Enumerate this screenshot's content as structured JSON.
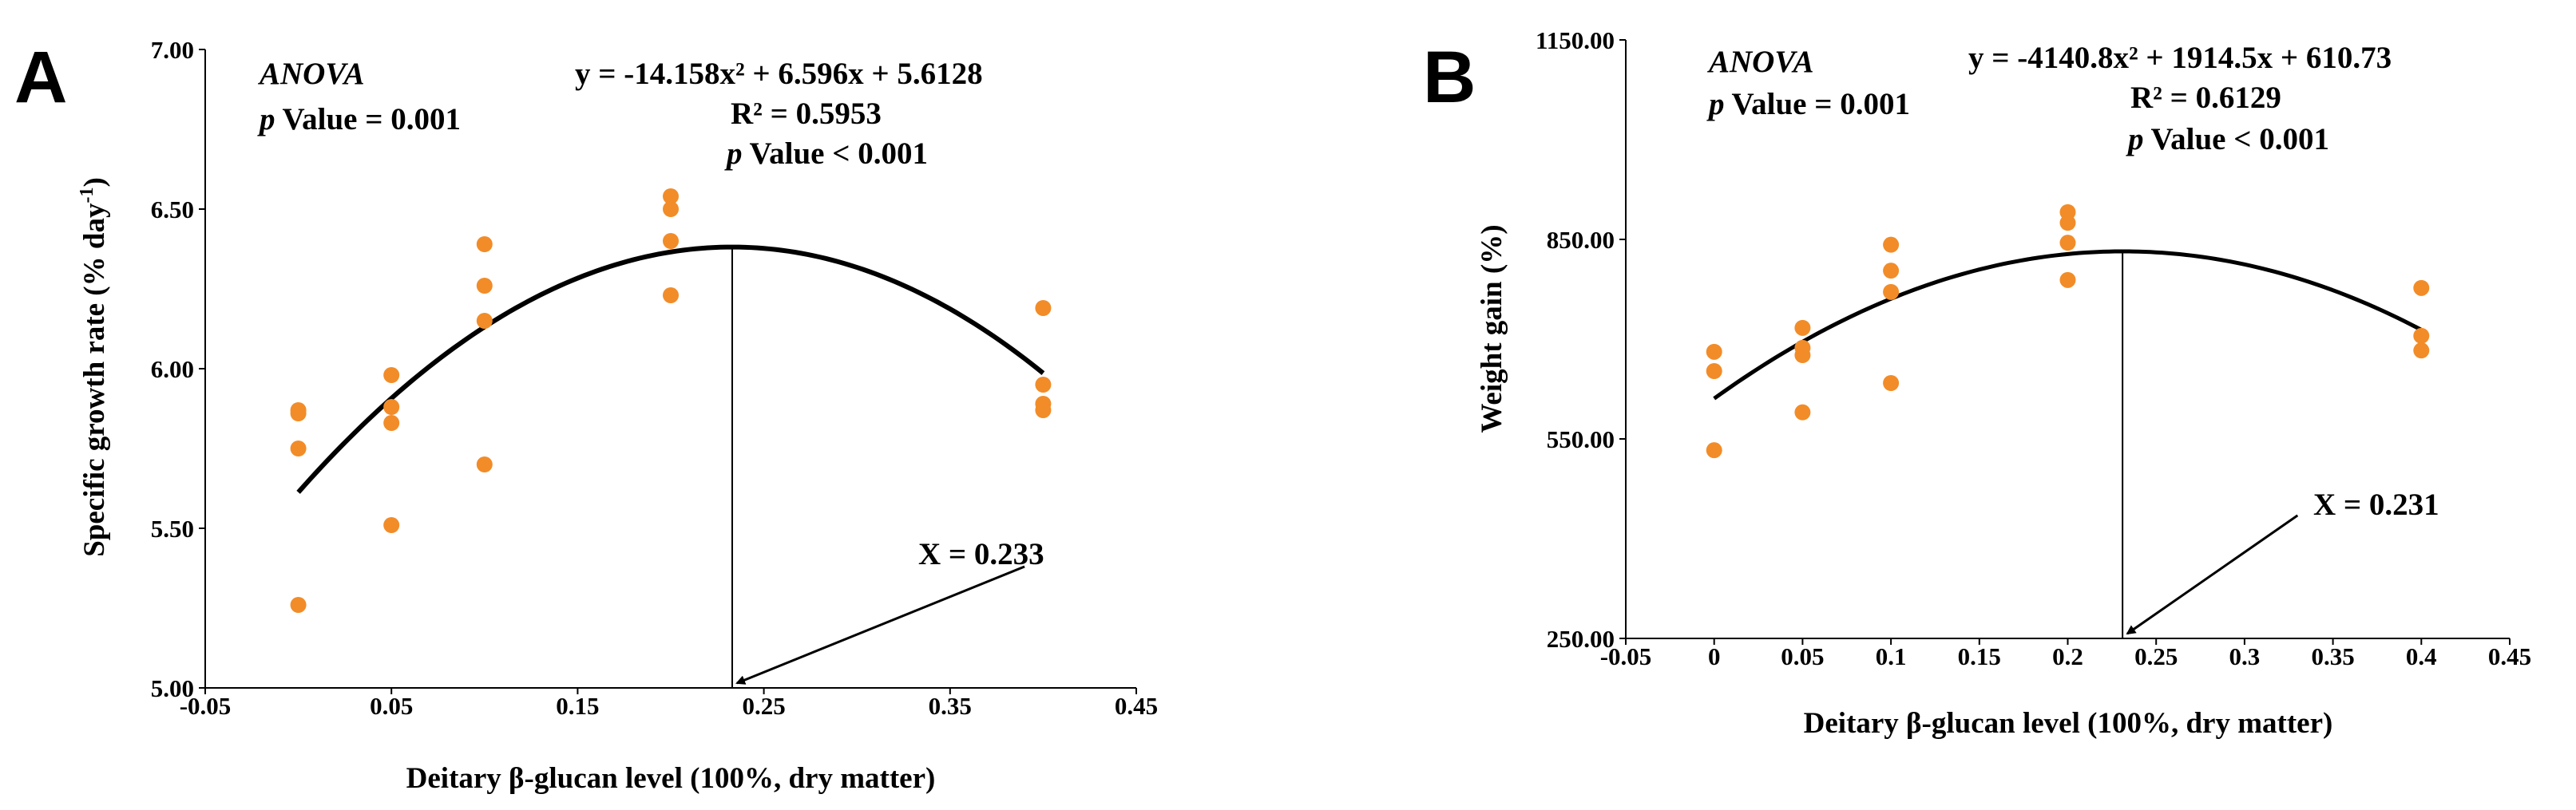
{
  "colors": {
    "points": "#f28c28",
    "curve": "#000000",
    "axes": "#000000",
    "background": "#ffffff"
  },
  "chart_data": [
    {
      "panel": "A",
      "type": "scatter",
      "title": "",
      "xlabel": "Deitary β-glucan level (100%, dry matter)",
      "ylabel_main": "Specific growth rate (% day",
      "ylabel_sup": "-1",
      "ylabel_close": ")",
      "xlim": [
        -0.05,
        0.45
      ],
      "ylim": [
        5.0,
        7.0
      ],
      "xticks": [
        -0.05,
        0.05,
        0.15,
        0.25,
        0.35,
        0.45
      ],
      "xtick_labels": [
        "-0.05",
        "0.05",
        "0.15",
        "0.25",
        "0.35",
        "0.45"
      ],
      "yticks": [
        5.0,
        5.5,
        6.0,
        6.5,
        7.0
      ],
      "ytick_labels": [
        "5.00",
        "5.50",
        "6.00",
        "6.50",
        "7.00"
      ],
      "points": [
        [
          0,
          5.87
        ],
        [
          0,
          5.86
        ],
        [
          0,
          5.75
        ],
        [
          0,
          5.26
        ],
        [
          0.05,
          5.98
        ],
        [
          0.05,
          5.88
        ],
        [
          0.05,
          5.83
        ],
        [
          0.05,
          5.51
        ],
        [
          0.1,
          6.39
        ],
        [
          0.1,
          6.26
        ],
        [
          0.1,
          6.15
        ],
        [
          0.1,
          5.7
        ],
        [
          0.2,
          6.54
        ],
        [
          0.2,
          6.5
        ],
        [
          0.2,
          6.4
        ],
        [
          0.2,
          6.23
        ],
        [
          0.4,
          6.19
        ],
        [
          0.4,
          5.95
        ],
        [
          0.4,
          5.89
        ],
        [
          0.4,
          5.87
        ]
      ],
      "fit": {
        "a": -14.158,
        "b": 6.596,
        "c": 5.6128,
        "x_range": [
          0,
          0.4
        ]
      },
      "optimum_x": 0.233,
      "arrow_start": [
        0.39,
        5.38
      ],
      "anova_label": "ANOVA",
      "anova_p_prefix": "p",
      "anova_p_text": " Value = 0.001",
      "equation_text": "y = -14.158x² + 6.596x + 5.6128",
      "r2_text": "R² = 0.5953",
      "fit_p_prefix": "p",
      "fit_p_text": " Value < 0.001",
      "optimum_text": "X = 0.233"
    },
    {
      "panel": "B",
      "type": "scatter",
      "title": "",
      "xlabel": "Deitary β-glucan level (100%, dry matter)",
      "ylabel_main": "Weight gain (%)",
      "ylabel_sup": "",
      "ylabel_close": "",
      "xlim": [
        -0.05,
        0.45
      ],
      "ylim": [
        250,
        1150
      ],
      "xticks": [
        -0.05,
        0,
        0.05,
        0.1,
        0.15,
        0.2,
        0.25,
        0.3,
        0.35,
        0.4,
        0.45
      ],
      "xtick_labels": [
        "-0.05",
        "0",
        "0.05",
        "0.1",
        "0.15",
        "0.2",
        "0.25",
        "0.3",
        "0.35",
        "0.4",
        "0.45"
      ],
      "yticks": [
        250,
        550,
        850,
        1150
      ],
      "ytick_labels": [
        "250.00",
        "550.00",
        "850.00",
        "1150.00"
      ],
      "points": [
        [
          0,
          681
        ],
        [
          0,
          652
        ],
        [
          0,
          533
        ],
        [
          0.05,
          717
        ],
        [
          0.05,
          687
        ],
        [
          0.05,
          676
        ],
        [
          0.05,
          590
        ],
        [
          0.1,
          842
        ],
        [
          0.1,
          803
        ],
        [
          0.1,
          771
        ],
        [
          0.1,
          634
        ],
        [
          0.2,
          891
        ],
        [
          0.2,
          875
        ],
        [
          0.2,
          845
        ],
        [
          0.2,
          789
        ],
        [
          0.4,
          777
        ],
        [
          0.4,
          705
        ],
        [
          0.4,
          683
        ]
      ],
      "fit": {
        "a": -4140.8,
        "b": 1914.5,
        "c": 610.73,
        "x_range": [
          0,
          0.4
        ]
      },
      "optimum_x": 0.231,
      "arrow_start": [
        0.33,
        435
      ],
      "anova_label": "ANOVA",
      "anova_p_prefix": "p",
      "anova_p_text": " Value = 0.001",
      "equation_text": "y = -4140.8x² + 1914.5x + 610.73",
      "r2_text": "R² = 0.6129",
      "fit_p_prefix": "p",
      "fit_p_text": " Value < 0.001",
      "optimum_text": "X = 0.231"
    }
  ]
}
